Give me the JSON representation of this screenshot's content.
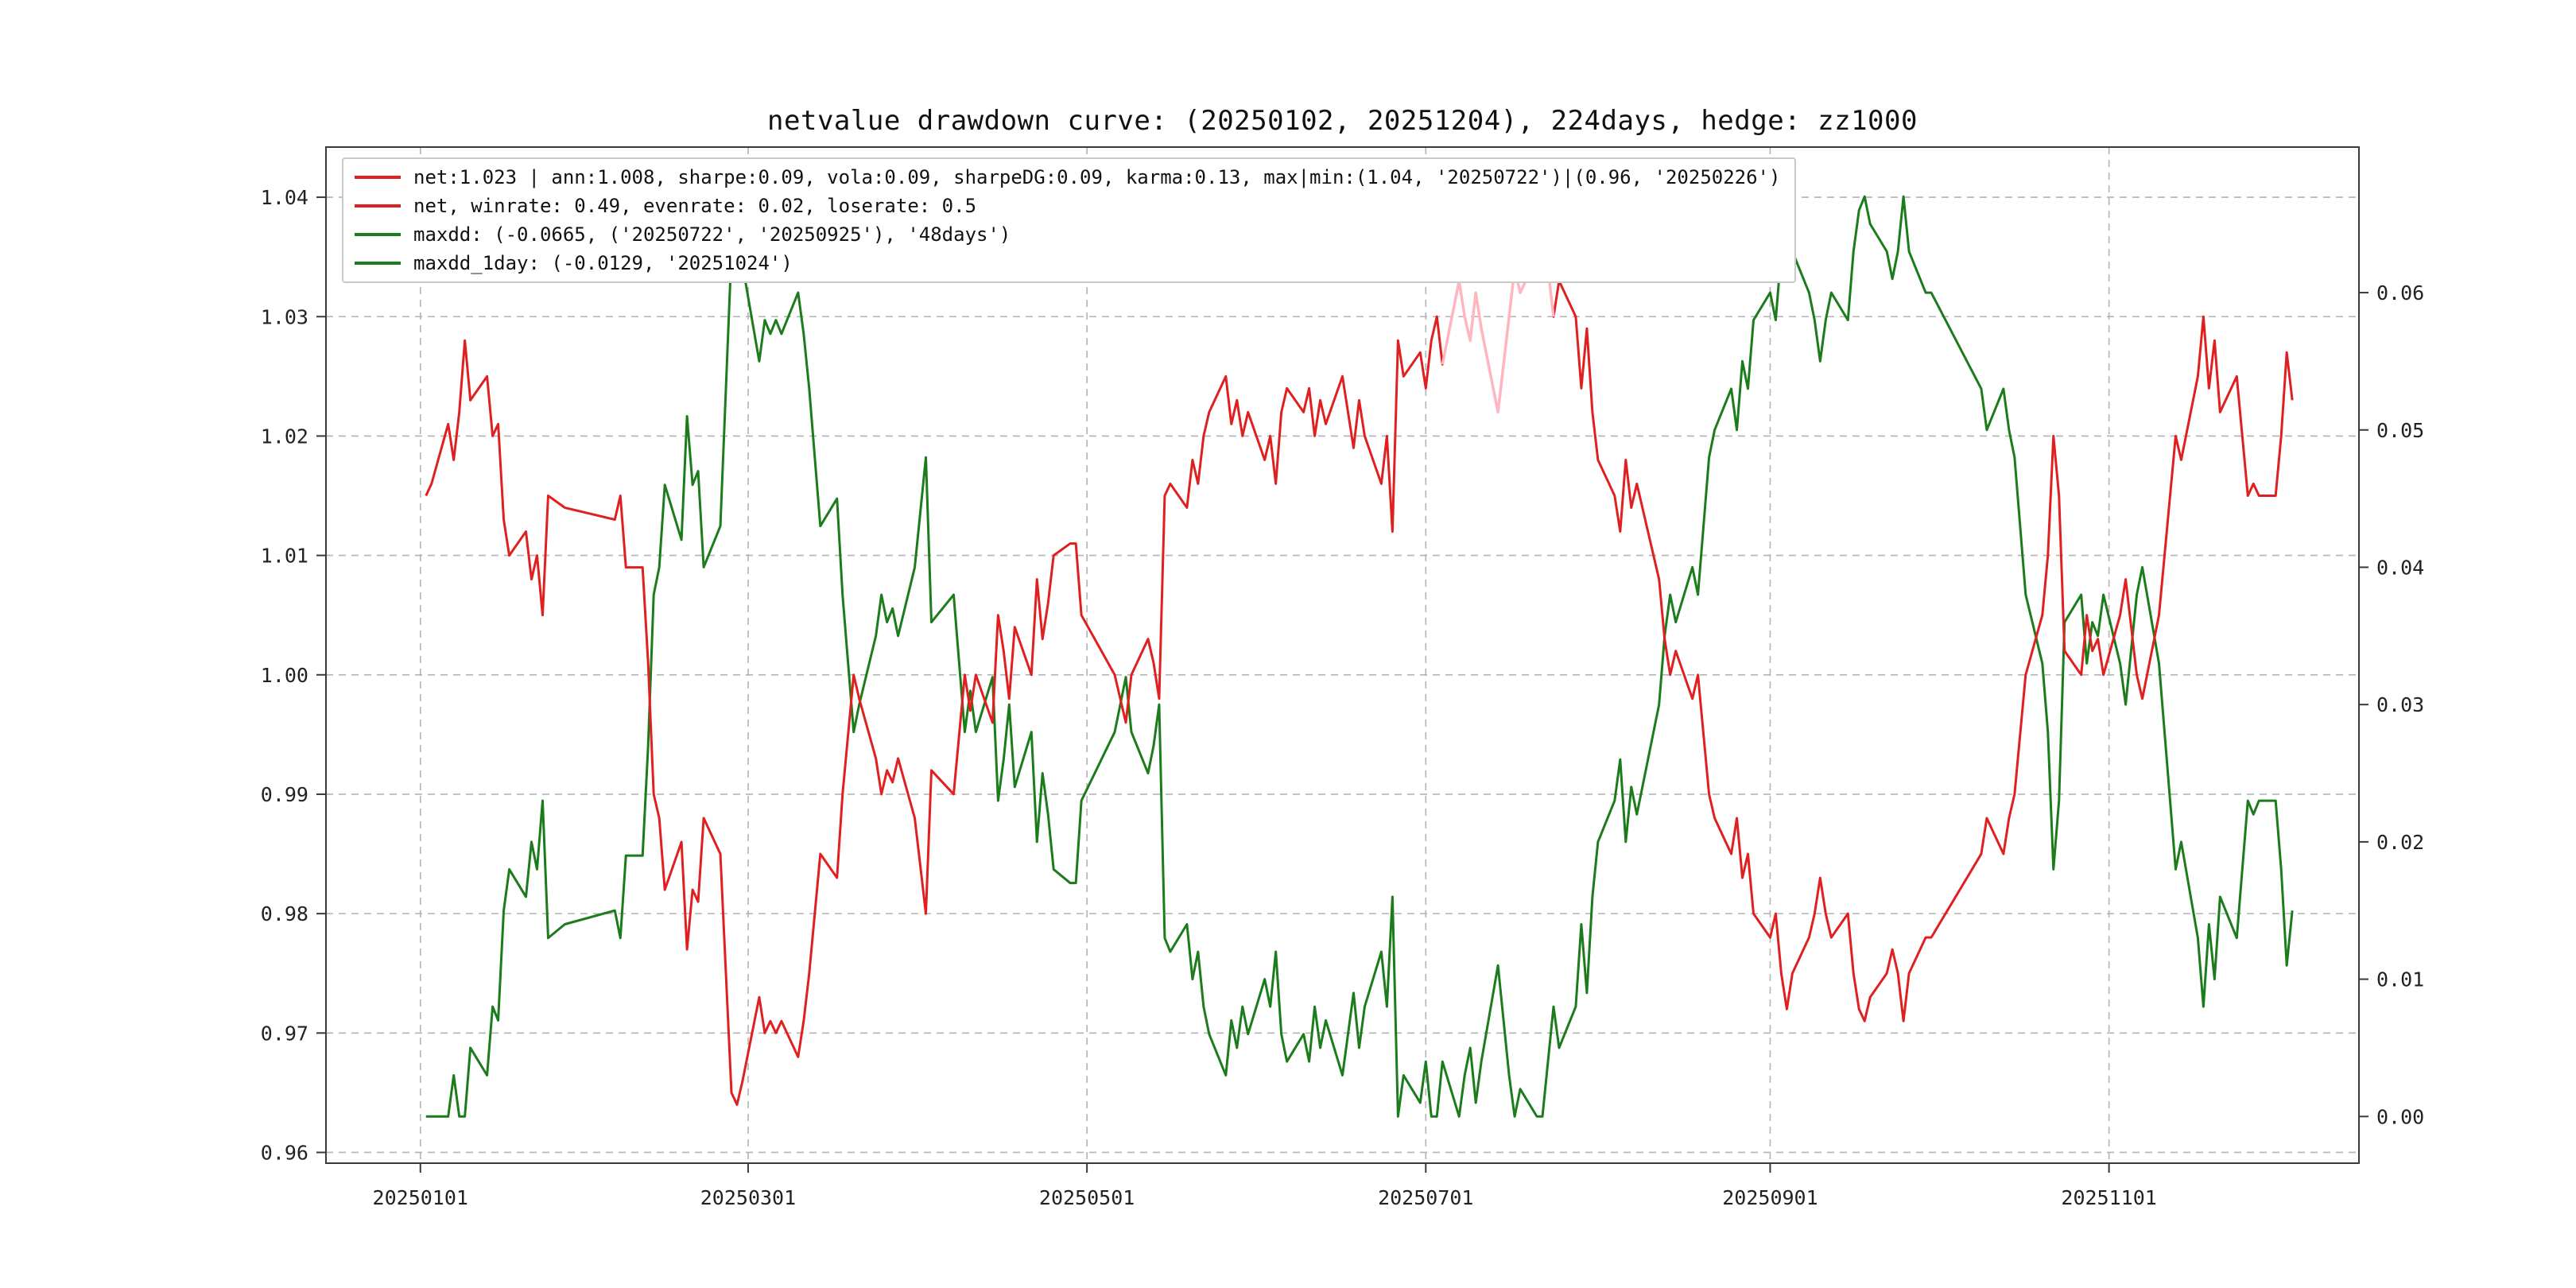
{
  "chart_data": {
    "type": "line",
    "title": "netvalue drawdown curve: (20250102, 20251204), 224days, hedge: zz1000",
    "legend": [
      {
        "label": "net:1.023 | ann:1.008, sharpe:0.09, vola:0.09, sharpeDG:0.09, karma:0.13, max|min:(1.04, '20250722')|(0.96, '20250226')",
        "color": "#e02020"
      },
      {
        "label": "net, winrate: 0.49, evenrate: 0.02, loserate: 0.5",
        "color": "#e02020"
      },
      {
        "label": "maxdd: (-0.0665, ('20250722', '20250925'), '48days')",
        "color": "#1c7c1c"
      },
      {
        "label": "maxdd_1day: (-0.0129, '20251024')",
        "color": "#1c7c1c"
      }
    ],
    "x_ticks": [
      "20250101",
      "20250301",
      "20250501",
      "20250701",
      "20250901",
      "20251101"
    ],
    "x_domain": [
      "20241215",
      "20251216"
    ],
    "left_axis": {
      "label": "",
      "ticks": [
        "0.96",
        "0.97",
        "0.98",
        "0.99",
        "1.00",
        "1.01",
        "1.02",
        "1.03",
        "1.04"
      ],
      "range": [
        0.9591,
        1.0442
      ]
    },
    "right_axis": {
      "label": "",
      "ticks": [
        "0.00",
        "0.01",
        "0.02",
        "0.03",
        "0.04",
        "0.05",
        "0.06"
      ],
      "range": [
        -0.0034,
        0.0706
      ]
    },
    "grid": {
      "style": "dashed",
      "color": "#b3b3b3"
    },
    "highlight": {
      "start": "20250704",
      "end": "20250724",
      "color": "#ffb6c1",
      "meaning": "net curve segment near max highlighted pink"
    },
    "dates": [
      "20250102",
      "20250103",
      "20250106",
      "20250107",
      "20250108",
      "20250109",
      "20250110",
      "20250113",
      "20250114",
      "20250115",
      "20250116",
      "20250117",
      "20250120",
      "20250121",
      "20250122",
      "20250123",
      "20250124",
      "20250127",
      "20250205",
      "20250206",
      "20250207",
      "20250210",
      "20250211",
      "20250212",
      "20250213",
      "20250214",
      "20250217",
      "20250218",
      "20250219",
      "20250220",
      "20250221",
      "20250224",
      "20250225",
      "20250226",
      "20250227",
      "20250228",
      "20250303",
      "20250304",
      "20250305",
      "20250306",
      "20250307",
      "20250310",
      "20250311",
      "20250312",
      "20250313",
      "20250314",
      "20250317",
      "20250318",
      "20250319",
      "20250320",
      "20250321",
      "20250324",
      "20250325",
      "20250326",
      "20250327",
      "20250328",
      "20250331",
      "20250401",
      "20250402",
      "20250403",
      "20250407",
      "20250408",
      "20250409",
      "20250410",
      "20250411",
      "20250414",
      "20250415",
      "20250416",
      "20250417",
      "20250418",
      "20250421",
      "20250422",
      "20250423",
      "20250424",
      "20250425",
      "20250428",
      "20250429",
      "20250430",
      "20250506",
      "20250507",
      "20250508",
      "20250509",
      "20250512",
      "20250513",
      "20250514",
      "20250515",
      "20250516",
      "20250519",
      "20250520",
      "20250521",
      "20250522",
      "20250523",
      "20250526",
      "20250527",
      "20250528",
      "20250529",
      "20250530",
      "20250602",
      "20250603",
      "20250604",
      "20250605",
      "20250606",
      "20250609",
      "20250610",
      "20250611",
      "20250612",
      "20250613",
      "20250616",
      "20250617",
      "20250618",
      "20250619",
      "20250620",
      "20250623",
      "20250624",
      "20250625",
      "20250626",
      "20250627",
      "20250630",
      "20250701",
      "20250702",
      "20250703",
      "20250704",
      "20250707",
      "20250708",
      "20250709",
      "20250710",
      "20250711",
      "20250714",
      "20250715",
      "20250716",
      "20250717",
      "20250718",
      "20250721",
      "20250722",
      "20250723",
      "20250724",
      "20250725",
      "20250728",
      "20250729",
      "20250730",
      "20250731",
      "20250801",
      "20250804",
      "20250805",
      "20250806",
      "20250807",
      "20250808",
      "20250811",
      "20250812",
      "20250813",
      "20250814",
      "20250815",
      "20250818",
      "20250819",
      "20250820",
      "20250821",
      "20250822",
      "20250825",
      "20250826",
      "20250827",
      "20250828",
      "20250829",
      "20250901",
      "20250902",
      "20250903",
      "20250904",
      "20250905",
      "20250908",
      "20250909",
      "20250910",
      "20250911",
      "20250912",
      "20250915",
      "20250916",
      "20250917",
      "20250918",
      "20250919",
      "20250922",
      "20250923",
      "20250924",
      "20250925",
      "20250926",
      "20250929",
      "20250930",
      "20251009",
      "20251010",
      "20251013",
      "20251014",
      "20251015",
      "20251016",
      "20251017",
      "20251020",
      "20251021",
      "20251022",
      "20251023",
      "20251024",
      "20251027",
      "20251028",
      "20251029",
      "20251030",
      "20251031",
      "20251103",
      "20251104",
      "20251105",
      "20251106",
      "20251107",
      "20251110",
      "20251111",
      "20251112",
      "20251113",
      "20251114",
      "20251117",
      "20251118",
      "20251119",
      "20251120",
      "20251121",
      "20251124",
      "20251125",
      "20251126",
      "20251127",
      "20251128",
      "20251201",
      "20251202",
      "20251203",
      "20251204"
    ],
    "series": [
      {
        "name": "net",
        "axis": "left",
        "color": "#e02020",
        "values": [
          1.015,
          1.016,
          1.021,
          1.018,
          1.022,
          1.028,
          1.023,
          1.025,
          1.02,
          1.021,
          1.013,
          1.01,
          1.012,
          1.008,
          1.01,
          1.005,
          1.015,
          1.014,
          1.013,
          1.015,
          1.009,
          1.009,
          1.001,
          0.99,
          0.988,
          0.982,
          0.986,
          0.977,
          0.982,
          0.981,
          0.988,
          0.985,
          0.975,
          0.965,
          0.964,
          0.966,
          0.973,
          0.97,
          0.971,
          0.97,
          0.971,
          0.968,
          0.971,
          0.975,
          0.98,
          0.985,
          0.983,
          0.99,
          0.995,
          1.0,
          0.998,
          0.993,
          0.99,
          0.992,
          0.991,
          0.993,
          0.988,
          0.984,
          0.98,
          0.992,
          0.99,
          0.995,
          1.0,
          0.997,
          1.0,
          0.996,
          1.005,
          1.002,
          0.998,
          1.004,
          1.0,
          1.008,
          1.003,
          1.006,
          1.01,
          1.011,
          1.011,
          1.005,
          1.0,
          0.998,
          0.996,
          1.0,
          1.003,
          1.001,
          0.998,
          1.015,
          1.016,
          1.014,
          1.018,
          1.016,
          1.02,
          1.022,
          1.025,
          1.021,
          1.023,
          1.02,
          1.022,
          1.018,
          1.02,
          1.016,
          1.022,
          1.024,
          1.022,
          1.024,
          1.02,
          1.023,
          1.021,
          1.025,
          1.022,
          1.019,
          1.023,
          1.02,
          1.016,
          1.02,
          1.012,
          1.028,
          1.025,
          1.027,
          1.024,
          1.028,
          1.03,
          1.026,
          1.033,
          1.03,
          1.028,
          1.032,
          1.029,
          1.022,
          1.026,
          1.03,
          1.034,
          1.032,
          1.035,
          1.038,
          1.034,
          1.03,
          1.033,
          1.03,
          1.024,
          1.029,
          1.022,
          1.018,
          1.015,
          1.012,
          1.018,
          1.014,
          1.016,
          1.01,
          1.008,
          1.003,
          1.0,
          1.002,
          0.998,
          1.0,
          0.995,
          0.99,
          0.988,
          0.985,
          0.988,
          0.983,
          0.985,
          0.98,
          0.978,
          0.98,
          0.975,
          0.972,
          0.975,
          0.978,
          0.98,
          0.983,
          0.98,
          0.978,
          0.98,
          0.975,
          0.972,
          0.971,
          0.973,
          0.975,
          0.977,
          0.975,
          0.971,
          0.975,
          0.978,
          0.978,
          0.985,
          0.988,
          0.985,
          0.988,
          0.99,
          0.995,
          1.0,
          1.005,
          1.01,
          1.02,
          1.015,
          1.002,
          1.0,
          1.005,
          1.002,
          1.003,
          1.0,
          1.005,
          1.008,
          1.004,
          1.0,
          0.998,
          1.005,
          1.01,
          1.015,
          1.02,
          1.018,
          1.025,
          1.03,
          1.024,
          1.028,
          1.022,
          1.025,
          1.02,
          1.015,
          1.016,
          1.015,
          1.015,
          1.02,
          1.027,
          1.023
        ]
      },
      {
        "name": "drawdown",
        "axis": "right",
        "color": "#1c7c1c",
        "values": [
          0.0,
          0.0,
          0.0,
          0.003,
          0.0,
          0.0,
          0.005,
          0.003,
          0.008,
          0.007,
          0.015,
          0.018,
          0.016,
          0.02,
          0.018,
          0.023,
          0.013,
          0.014,
          0.015,
          0.013,
          0.019,
          0.019,
          0.027,
          0.038,
          0.04,
          0.046,
          0.042,
          0.051,
          0.046,
          0.047,
          0.04,
          0.043,
          0.053,
          0.063,
          0.064,
          0.062,
          0.055,
          0.058,
          0.057,
          0.058,
          0.057,
          0.06,
          0.057,
          0.053,
          0.048,
          0.043,
          0.045,
          0.038,
          0.033,
          0.028,
          0.03,
          0.035,
          0.038,
          0.036,
          0.037,
          0.035,
          0.04,
          0.044,
          0.048,
          0.036,
          0.038,
          0.033,
          0.028,
          0.031,
          0.028,
          0.032,
          0.023,
          0.026,
          0.03,
          0.024,
          0.028,
          0.02,
          0.025,
          0.022,
          0.018,
          0.017,
          0.017,
          0.023,
          0.028,
          0.03,
          0.032,
          0.028,
          0.025,
          0.027,
          0.03,
          0.013,
          0.012,
          0.014,
          0.01,
          0.012,
          0.008,
          0.006,
          0.003,
          0.007,
          0.005,
          0.008,
          0.006,
          0.01,
          0.008,
          0.012,
          0.006,
          0.004,
          0.006,
          0.004,
          0.008,
          0.005,
          0.007,
          0.003,
          0.006,
          0.009,
          0.005,
          0.008,
          0.012,
          0.008,
          0.016,
          0.0,
          0.003,
          0.001,
          0.004,
          0.0,
          0.0,
          0.004,
          0.0,
          0.003,
          0.005,
          0.001,
          0.004,
          0.011,
          0.007,
          0.003,
          0.0,
          0.002,
          0.0,
          0.0,
          0.004,
          0.008,
          0.005,
          0.008,
          0.014,
          0.009,
          0.016,
          0.02,
          0.023,
          0.026,
          0.02,
          0.024,
          0.022,
          0.028,
          0.03,
          0.035,
          0.038,
          0.036,
          0.04,
          0.038,
          0.043,
          0.048,
          0.05,
          0.053,
          0.05,
          0.055,
          0.053,
          0.058,
          0.06,
          0.058,
          0.063,
          0.066,
          0.063,
          0.06,
          0.058,
          0.055,
          0.058,
          0.06,
          0.058,
          0.063,
          0.066,
          0.067,
          0.065,
          0.063,
          0.061,
          0.063,
          0.067,
          0.063,
          0.06,
          0.06,
          0.053,
          0.05,
          0.053,
          0.05,
          0.048,
          0.043,
          0.038,
          0.033,
          0.028,
          0.018,
          0.023,
          0.036,
          0.038,
          0.033,
          0.036,
          0.035,
          0.038,
          0.033,
          0.03,
          0.034,
          0.038,
          0.04,
          0.033,
          0.028,
          0.023,
          0.018,
          0.02,
          0.013,
          0.008,
          0.014,
          0.01,
          0.016,
          0.013,
          0.018,
          0.023,
          0.022,
          0.023,
          0.023,
          0.018,
          0.011,
          0.015
        ]
      }
    ]
  }
}
